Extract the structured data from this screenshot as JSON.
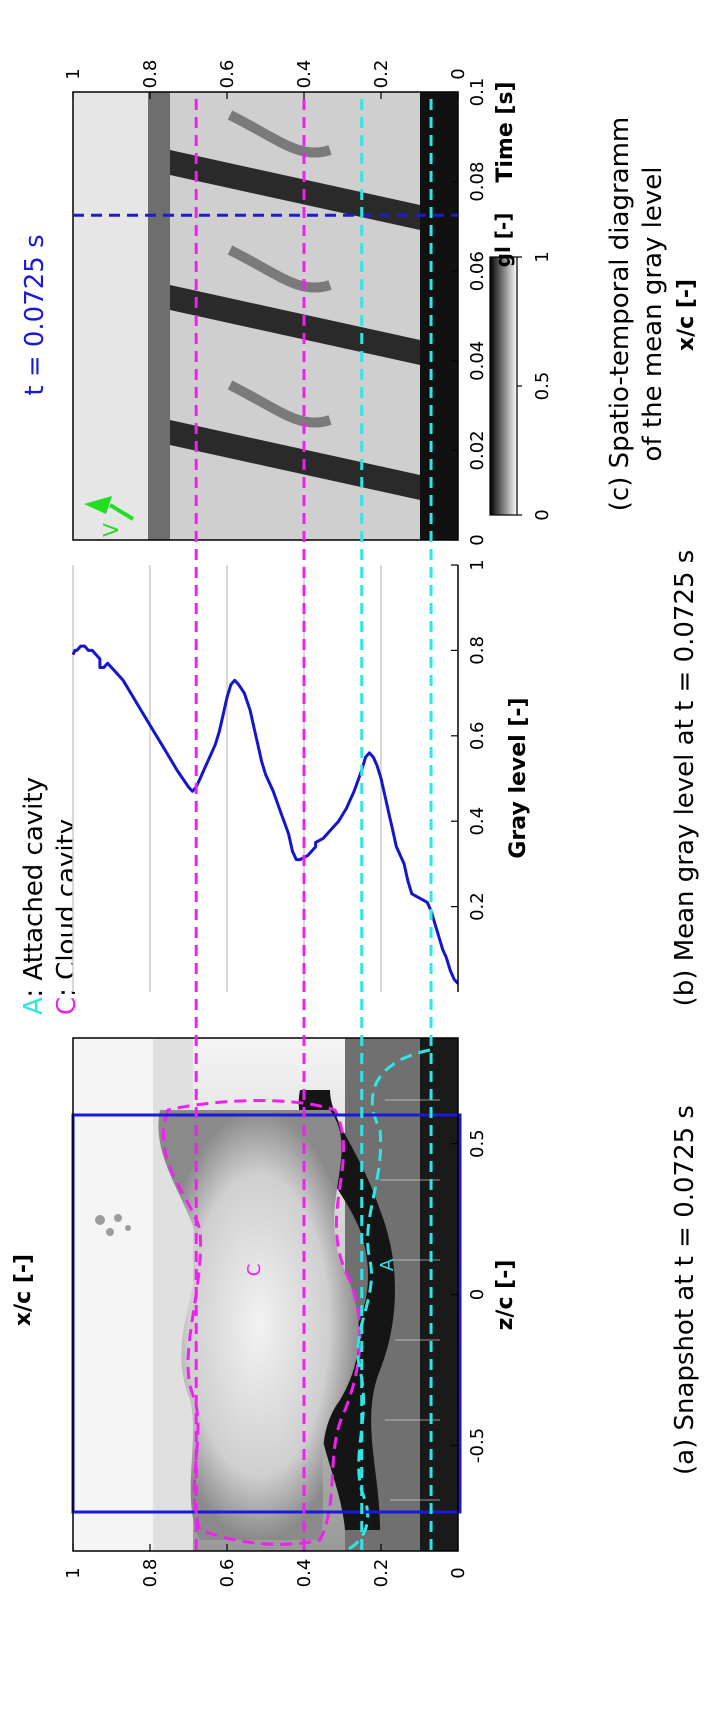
{
  "legend": {
    "attached_letter": "A",
    "attached_label": ": Attached cavity",
    "cloud_letter": "C",
    "cloud_label": ": Cloud cavity"
  },
  "captions": {
    "a": "(a) Snapshot at t = 0.0725 s",
    "b": "(b) Mean gray level at t = 0.0725 s",
    "c_line1": "(c) Spatio-temporal diagramm",
    "c_line2": "of the mean gray level"
  },
  "annotations": {
    "time_marker": "t = 0.0725 s",
    "velocity": "V",
    "region_c": "C",
    "region_a": "A"
  },
  "colorbar": {
    "label": "gl [-]",
    "ticks": [
      "0",
      "0.5",
      "1"
    ]
  },
  "colors": {
    "attached": "#2ee6e6",
    "cloud": "#ee22ee",
    "time_marker": "#1a1adc",
    "curve": "#1515cc",
    "velocity_arrow": "#22dd22"
  },
  "chart_data": [
    {
      "type": "image",
      "panel": "a",
      "xlabel": "z/c [-]",
      "ylabel": "x/c [-]",
      "xlim": [
        -0.85,
        0.85
      ],
      "ylim": [
        0,
        1
      ],
      "xticks": [
        "-0.5",
        "0",
        "0.5"
      ],
      "yticks": [
        "0",
        "0.2",
        "0.4",
        "0.6",
        "0.8",
        "1"
      ],
      "analysis_window_z": [
        -0.6,
        0.6
      ],
      "cloud_cavity_extent_x": [
        0.4,
        0.68
      ],
      "attached_cavity_extent_x": [
        0.07,
        0.25
      ]
    },
    {
      "type": "line",
      "panel": "b",
      "xlabel": "Gray level [-]",
      "ylabel": "",
      "xlim": [
        0,
        1
      ],
      "ylim": [
        0,
        1
      ],
      "xticks": [
        "0.2",
        "0.4",
        "0.6",
        "0.8",
        "1"
      ],
      "grid": true,
      "series": [
        {
          "x": [
            0.02,
            0.03,
            0.05,
            0.08,
            0.1,
            0.13,
            0.16,
            0.19,
            0.21,
            0.22,
            0.23,
            0.26,
            0.3,
            0.34,
            0.38,
            0.42,
            0.46,
            0.5,
            0.53,
            0.55,
            0.56,
            0.55,
            0.52,
            0.47,
            0.43,
            0.4,
            0.38,
            0.36,
            0.355,
            0.35,
            0.34,
            0.33,
            0.32,
            0.31,
            0.31,
            0.33,
            0.37,
            0.42,
            0.47,
            0.51,
            0.54,
            0.58,
            0.62,
            0.66,
            0.7,
            0.72,
            0.73,
            0.72,
            0.69,
            0.65,
            0.61,
            0.58,
            0.55,
            0.52,
            0.5,
            0.48,
            0.47,
            0.48,
            0.5,
            0.52,
            0.55,
            0.58,
            0.61,
            0.64,
            0.67,
            0.7,
            0.73,
            0.75,
            0.76,
            0.77,
            0.76,
            0.76,
            0.78,
            0.79,
            0.8,
            0.8,
            0.81,
            0.81,
            0.8,
            0.8,
            0.79
          ],
          "y": [
            0.0,
            0.01,
            0.02,
            0.03,
            0.04,
            0.05,
            0.06,
            0.07,
            0.08,
            0.1,
            0.12,
            0.13,
            0.14,
            0.16,
            0.17,
            0.18,
            0.19,
            0.2,
            0.21,
            0.22,
            0.23,
            0.24,
            0.25,
            0.27,
            0.29,
            0.31,
            0.33,
            0.35,
            0.36,
            0.37,
            0.37,
            0.38,
            0.39,
            0.41,
            0.42,
            0.43,
            0.44,
            0.46,
            0.48,
            0.5,
            0.51,
            0.52,
            0.53,
            0.54,
            0.555,
            0.57,
            0.58,
            0.59,
            0.6,
            0.61,
            0.62,
            0.63,
            0.645,
            0.66,
            0.67,
            0.68,
            0.69,
            0.7,
            0.715,
            0.73,
            0.75,
            0.77,
            0.79,
            0.81,
            0.83,
            0.85,
            0.87,
            0.89,
            0.9,
            0.91,
            0.92,
            0.93,
            0.93,
            0.94,
            0.95,
            0.96,
            0.97,
            0.98,
            0.99,
            0.995,
            1.0
          ]
        }
      ]
    },
    {
      "type": "heatmap",
      "panel": "c",
      "xlabel": "Time [s]",
      "ylabel": "x/c [-]",
      "xlim": [
        0,
        0.1
      ],
      "ylim": [
        0,
        1
      ],
      "xticks": [
        "0",
        "0.02",
        "0.04",
        "0.06",
        "0.08",
        "0.1"
      ],
      "yticks": [
        "0",
        "0.2",
        "0.4",
        "0.6",
        "0.8",
        "1"
      ],
      "time_marker_s": 0.0725,
      "colorbar_range": [
        0,
        1
      ]
    }
  ],
  "guides": {
    "cloud_x": [
      0.68,
      0.4
    ],
    "attached_x": [
      0.25,
      0.07
    ]
  }
}
